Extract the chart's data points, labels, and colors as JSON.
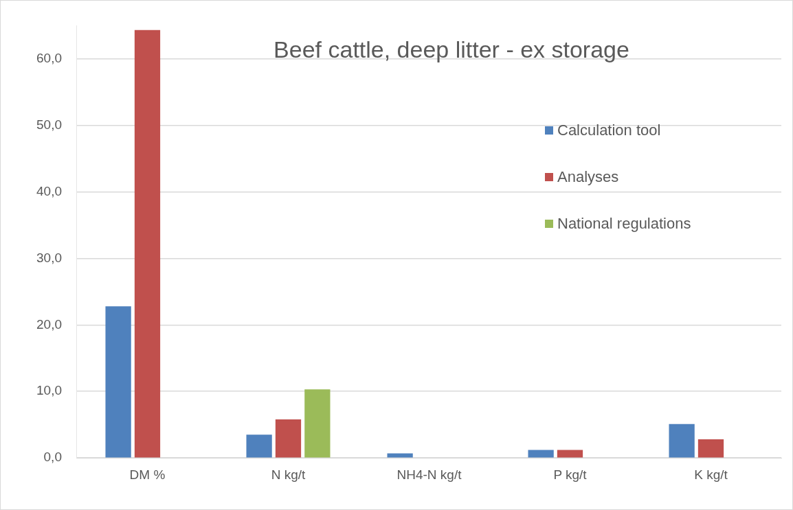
{
  "chart_data": {
    "type": "bar",
    "title": "Beef cattle, deep litter - ex storage",
    "categories": [
      "DM %",
      "N kg/t",
      "NH4-N kg/t",
      "P kg/t",
      "K kg/t"
    ],
    "series": [
      {
        "name": "Calculation tool",
        "color": "#4f81bd",
        "values": [
          22.8,
          3.5,
          0.7,
          1.2,
          5.1
        ]
      },
      {
        "name": "Analyses",
        "color": "#c0504d",
        "values": [
          64.3,
          5.8,
          null,
          1.2,
          2.8
        ]
      },
      {
        "name": "National regulations",
        "color": "#9bbb59",
        "values": [
          null,
          10.3,
          null,
          null,
          null
        ]
      }
    ],
    "ylim": [
      0,
      65
    ],
    "yticks": [
      {
        "value": 0,
        "label": "0,0"
      },
      {
        "value": 10,
        "label": "10,0"
      },
      {
        "value": 20,
        "label": "20,0"
      },
      {
        "value": 30,
        "label": "30,0"
      },
      {
        "value": 40,
        "label": "40,0"
      },
      {
        "value": 50,
        "label": "50,0"
      },
      {
        "value": 60,
        "label": "60,0"
      }
    ],
    "grid": "y",
    "legend": "top right"
  }
}
